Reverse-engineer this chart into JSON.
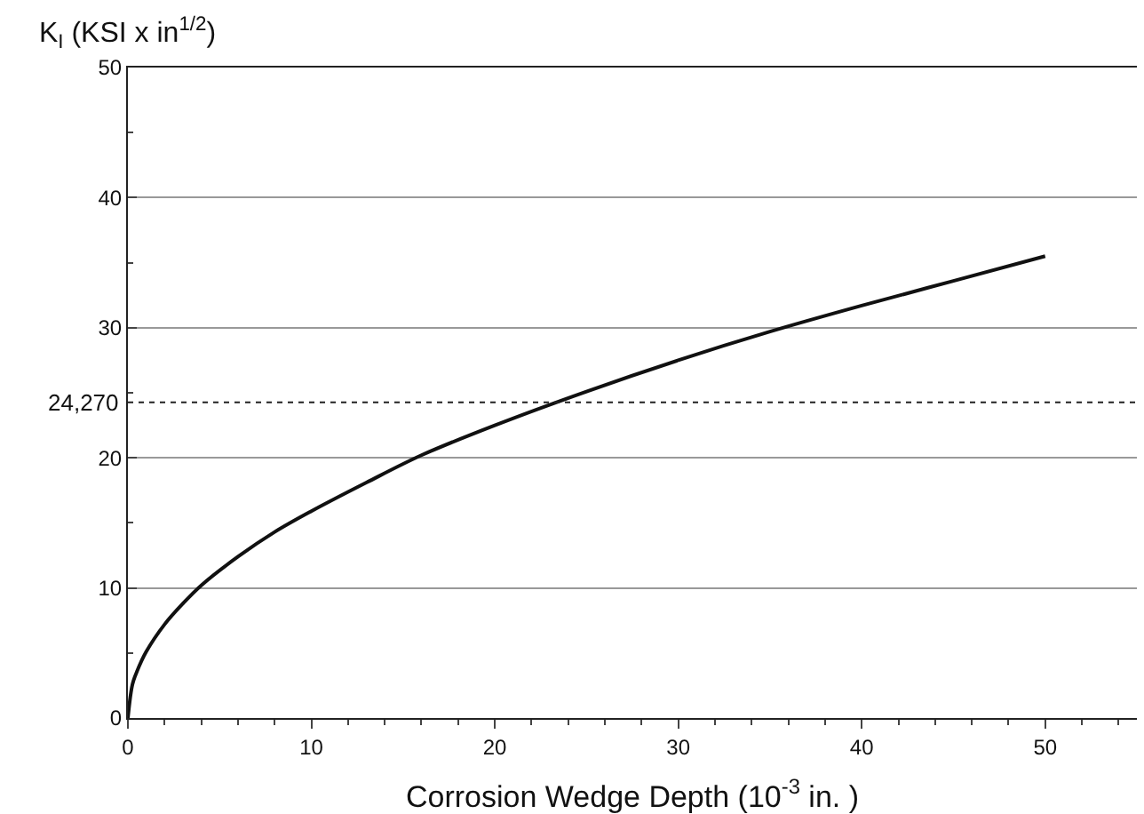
{
  "chart_data": {
    "type": "line",
    "ylabel": "K$_{I}$ (KSI x in$^{1/2}$)",
    "xlabel": "Corrosion Wedge Depth (10$^{-3}$ in. )",
    "x": [
      0,
      0.25,
      0.5,
      1,
      2,
      3,
      4,
      6,
      8,
      10,
      13,
      16,
      20,
      25,
      30,
      35,
      40,
      45,
      50
    ],
    "series": [
      {
        "color": "#111111",
        "values": [
          0,
          2.6,
          3.6,
          5.1,
          7.2,
          8.8,
          10.2,
          12.4,
          14.3,
          15.9,
          18.1,
          20.2,
          22.5,
          25.1,
          27.5,
          29.7,
          31.7,
          33.6,
          35.5
        ]
      }
    ],
    "xlim": [
      0,
      55
    ],
    "xticks": [
      0,
      10,
      20,
      30,
      40,
      50
    ],
    "ylim": [
      0,
      50
    ],
    "yticks": [
      0,
      10,
      20,
      30,
      40,
      50
    ],
    "grid": "y",
    "marker": "none",
    "line_style": "solid",
    "ref_lines": [
      {
        "axis": "y",
        "value": 24.27,
        "label": "24,270",
        "line_style": "dotted",
        "color": "#222222"
      }
    ]
  }
}
